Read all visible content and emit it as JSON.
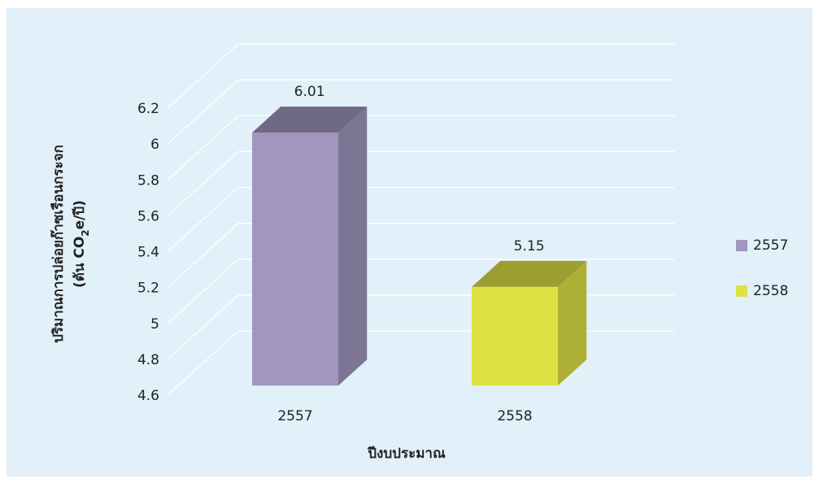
{
  "chart_data": {
    "type": "bar3d",
    "y_label": {
      "line1": "ปริมาณการปล่อยก๊าซเรือนกระจก",
      "line2": [
        "(ตัน CO",
        "2",
        "e/ปี)"
      ]
    },
    "x_label": "ปีงบประมาณ",
    "categories": [
      "2557",
      "2558"
    ],
    "series": [
      {
        "name": "2557",
        "color": "#a096be",
        "values": [
          6.01,
          null
        ]
      },
      {
        "name": "2558",
        "color": "#dfe244",
        "values": [
          null,
          5.15
        ]
      }
    ],
    "ylim": [
      4.6,
      6.2
    ],
    "yticks": [
      4.6,
      4.8,
      5,
      5.2,
      5.4,
      5.6,
      5.8,
      6,
      6.2
    ],
    "grid": true,
    "legend": "right"
  }
}
